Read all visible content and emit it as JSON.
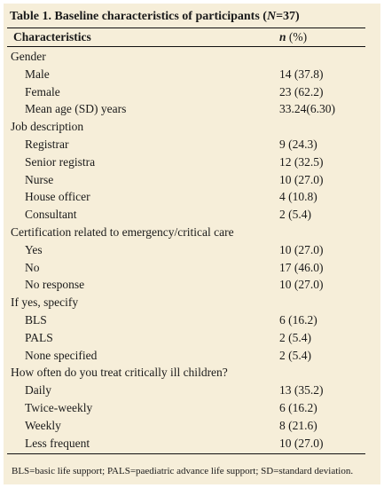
{
  "table": {
    "title_prefix": "Table 1. Baseline characteristics of participants (",
    "title_n": "N",
    "title_suffix": "=37)",
    "header": {
      "characteristics": "Characteristics",
      "value_n": "n",
      "value_pct": " (%)"
    },
    "rows": [
      {
        "type": "category",
        "label": "Gender",
        "value": ""
      },
      {
        "type": "item",
        "label": "Male",
        "value": "14 (37.8)"
      },
      {
        "type": "item",
        "label": "Female",
        "value": "23 (62.2)"
      },
      {
        "type": "item",
        "label": "Mean age (SD) years",
        "value": "33.24(6.30)"
      },
      {
        "type": "category",
        "label": "Job description",
        "value": ""
      },
      {
        "type": "item",
        "label": "Registrar",
        "value": "9 (24.3)"
      },
      {
        "type": "item",
        "label": "Senior registra",
        "value": "12 (32.5)"
      },
      {
        "type": "item",
        "label": "Nurse",
        "value": "10 (27.0)"
      },
      {
        "type": "item",
        "label": "House officer",
        "value": "4 (10.8)"
      },
      {
        "type": "item",
        "label": "Consultant",
        "value": "2 (5.4)"
      },
      {
        "type": "category",
        "label": "Certification related to emergency/critical care",
        "value": ""
      },
      {
        "type": "item",
        "label": "Yes",
        "value": "10 (27.0)"
      },
      {
        "type": "item",
        "label": "No",
        "value": "17 (46.0)"
      },
      {
        "type": "item",
        "label": "No response",
        "value": "10 (27.0)"
      },
      {
        "type": "category",
        "label": "If yes, specify",
        "value": ""
      },
      {
        "type": "item",
        "label": "BLS",
        "value": "6 (16.2)"
      },
      {
        "type": "item",
        "label": "PALS",
        "value": "2 (5.4)"
      },
      {
        "type": "item",
        "label": "None specified",
        "value": "2 (5.4)"
      },
      {
        "type": "category",
        "label": "How often do you treat critically ill children?",
        "value": ""
      },
      {
        "type": "item",
        "label": "Daily",
        "value": "13 (35.2)"
      },
      {
        "type": "item",
        "label": "Twice-weekly",
        "value": "6 (16.2)"
      },
      {
        "type": "item",
        "label": "Weekly",
        "value": "8 (21.6)"
      },
      {
        "type": "item",
        "label": "Less frequent",
        "value": "10 (27.0)"
      }
    ],
    "footnote": "BLS=basic life support; PALS=paediatric advance life support; SD=standard deviation."
  },
  "colors": {
    "background": "#f6eed9",
    "rule": "#111111",
    "text": "#1a1a1a"
  }
}
